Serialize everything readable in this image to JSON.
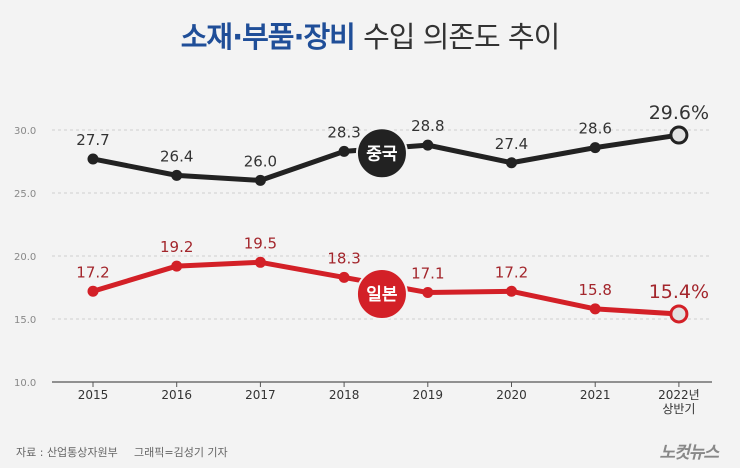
{
  "title": {
    "highlight": "소재·부품·장비",
    "rest": "수입 의존도 추이"
  },
  "chart_data": {
    "type": "line",
    "categories": [
      "2015",
      "2016",
      "2017",
      "2018",
      "2019",
      "2020",
      "2021",
      "2022년 상반기"
    ],
    "category_lines": [
      [
        "2015"
      ],
      [
        "2016"
      ],
      [
        "2017"
      ],
      [
        "2018"
      ],
      [
        "2019"
      ],
      [
        "2020"
      ],
      [
        "2021"
      ],
      [
        "2022년",
        "상반기"
      ]
    ],
    "ylim": [
      10.0,
      30.0
    ],
    "yticks": [
      "10.0",
      "15.0",
      "20.0",
      "25.0",
      "30.0"
    ],
    "series": [
      {
        "name": "중국",
        "color": "#222222",
        "label_color": "#333333",
        "values": [
          27.7,
          26.4,
          26.0,
          28.3,
          28.8,
          27.4,
          28.6,
          29.6
        ],
        "labels": [
          "27.7",
          "26.4",
          "26.0",
          "28.3",
          "28.8",
          "27.4",
          "28.6",
          "29.6%"
        ]
      },
      {
        "name": "일본",
        "color": "#d32027",
        "label_color": "#a3262c",
        "values": [
          17.2,
          19.2,
          19.5,
          18.3,
          17.1,
          17.2,
          15.8,
          15.4
        ],
        "labels": [
          "17.2",
          "19.2",
          "19.5",
          "18.3",
          "17.1",
          "17.2",
          "15.8",
          "15.4%"
        ]
      }
    ]
  },
  "footer": {
    "source": "자료 : 산업통상자원부",
    "credit": "그래픽=김성기 기자",
    "logo": "노컷뉴스"
  }
}
